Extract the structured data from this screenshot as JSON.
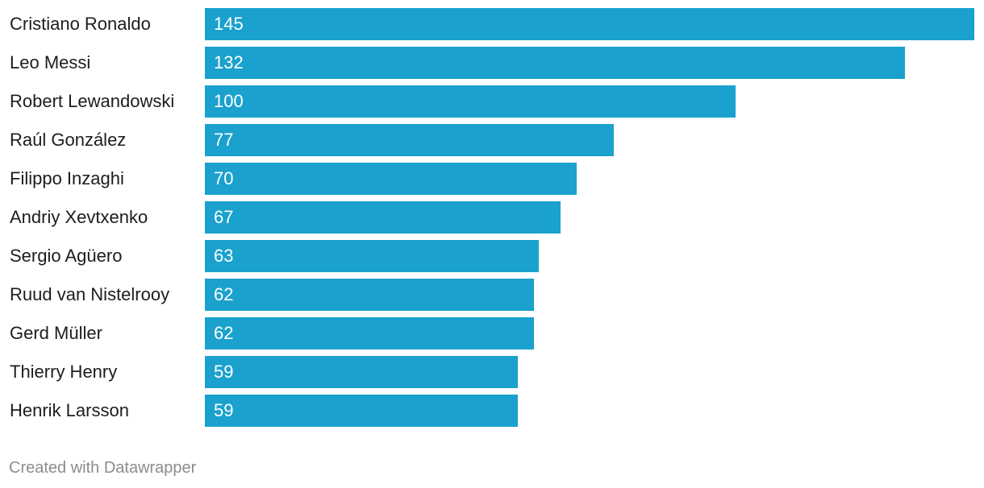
{
  "chart_data": {
    "type": "bar",
    "orientation": "horizontal",
    "categories": [
      "Cristiano Ronaldo",
      "Leo Messi",
      "Robert Lewandowski",
      "Raúl González",
      "Filippo Inzaghi",
      "Andriy Xevtxenko",
      "Sergio Agüero",
      "Ruud van Nistelrooy",
      "Gerd Müller",
      "Thierry Henry",
      "Henrik Larsson"
    ],
    "values": [
      145,
      132,
      100,
      77,
      70,
      67,
      63,
      62,
      62,
      59,
      59
    ],
    "xlim": [
      0,
      145
    ],
    "grid": false,
    "data_labels": true,
    "bar_color": "#1aa1cd"
  },
  "footer": {
    "credit": "Created with Datawrapper"
  }
}
